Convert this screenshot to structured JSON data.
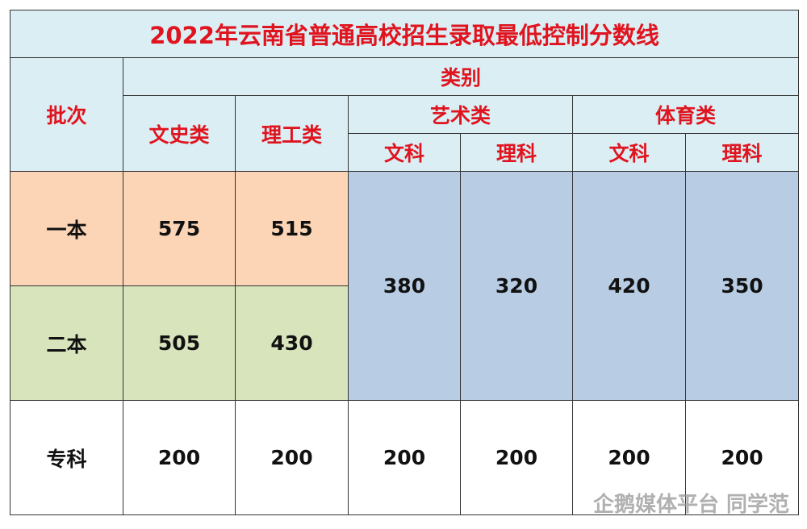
{
  "title": "2022年云南省普通高校招生录取最低控制分数线",
  "header": {
    "batch": "批次",
    "category": "类别",
    "wenshi": "文史类",
    "ligong": "理工类",
    "groups": [
      {
        "name": "艺术类",
        "subs": [
          "文科",
          "理科"
        ]
      },
      {
        "name": "体育类",
        "subs": [
          "文科",
          "理科"
        ]
      }
    ]
  },
  "rows": [
    {
      "batch": "一本",
      "wenshi": 575,
      "ligong": 515
    },
    {
      "batch": "二本",
      "wenshi": 505,
      "ligong": 430
    }
  ],
  "merged": [
    380,
    320,
    420,
    350
  ],
  "zhuanke": {
    "batch": "专科",
    "values": [
      200,
      200,
      200,
      200,
      200,
      200
    ]
  },
  "watermark": "企鹅媒体平台 同学范"
}
